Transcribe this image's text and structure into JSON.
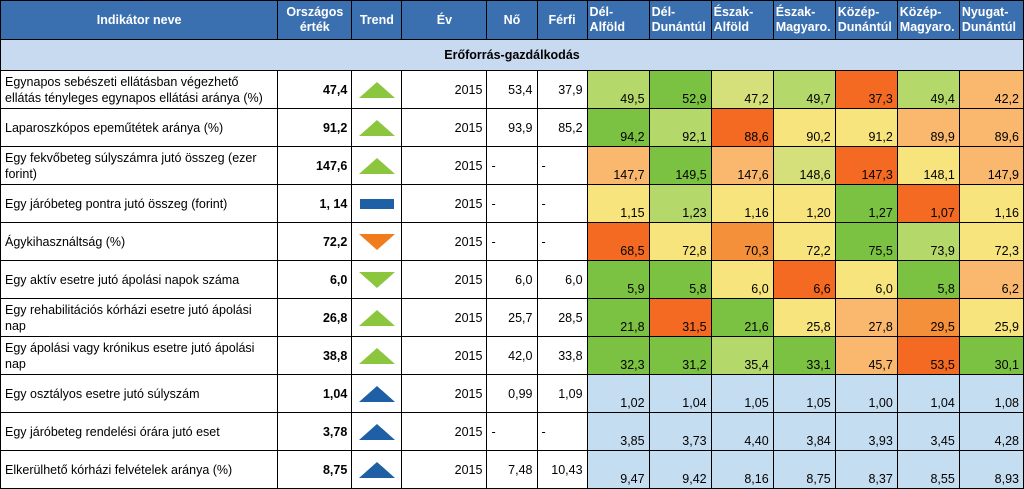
{
  "headers": [
    "Indikátor neve",
    "Országos érték",
    "Trend",
    "Év",
    "Nő",
    "Férfi",
    "Dél-Alföld",
    "Dél-Dunántúl",
    "Észak-Alföld",
    "Észak-Magyaro.",
    "Közép-Dunántúl",
    "Közép-Magyaro.",
    "Nyugat-Dunántúl"
  ],
  "header_lines": [
    [
      "Indikátor neve"
    ],
    [
      "Országos",
      "érték"
    ],
    [
      "Trend"
    ],
    [
      "Év"
    ],
    [
      "Nő"
    ],
    [
      "Férfi"
    ],
    [
      "Dél-",
      "Alföld"
    ],
    [
      "Dél-",
      "Dunántúl"
    ],
    [
      "Észak-",
      "Alföld"
    ],
    [
      "Észak-",
      "Magyaro."
    ],
    [
      "Közép-",
      "Dunántúl"
    ],
    [
      "Közép-",
      "Magyaro."
    ],
    [
      "Nyugat-",
      "Dunántúl"
    ]
  ],
  "section_title": "Erőforrás-gazdálkodás",
  "colors": {
    "header_bg": "#3a6fb0",
    "section_bg": "#c8daf0",
    "green": "#7cc242",
    "lightgreen": "#b5d86a",
    "yellow": "#f8e47c",
    "lightorange": "#f9b86e",
    "orange": "#f5903a",
    "darkorange": "#f46a22",
    "blue": "#c5ddf0"
  },
  "rows": [
    {
      "name": "Egynapos sebészeti ellátásban végezhető ellátás tényleges egynapos ellátási aránya (%)",
      "national": "47,4",
      "trend": "up-green",
      "year": "2015",
      "female": "53,4",
      "male": "37,9",
      "regions": [
        "49,5",
        "52,9",
        "47,2",
        "49,7",
        "37,3",
        "49,4",
        "42,2"
      ],
      "colors": [
        "#b5d86a",
        "#7cc242",
        "#d6e07a",
        "#b5d86a",
        "#f46a22",
        "#b5d86a",
        "#f9b86e"
      ]
    },
    {
      "name": "Laparoszkópos  epeműtétek aránya (%)",
      "national": "91,2",
      "trend": "up-green",
      "year": "2015",
      "female": "93,9",
      "male": "85,2",
      "regions": [
        "94,2",
        "92,1",
        "88,6",
        "90,2",
        "91,2",
        "89,9",
        "89,6"
      ],
      "colors": [
        "#7cc242",
        "#b5d86a",
        "#f46a22",
        "#f8e47c",
        "#f8e47c",
        "#f9b86e",
        "#f9b86e"
      ]
    },
    {
      "name": "Egy fekvőbeteg súlyszámra jutó összeg (ezer forint)",
      "national": "147,6",
      "trend": "up-green",
      "year": "2015",
      "female": "-",
      "male": "-",
      "regions": [
        "147,7",
        "149,5",
        "147,6",
        "148,6",
        "147,3",
        "148,1",
        "147,9"
      ],
      "colors": [
        "#f9b86e",
        "#7cc242",
        "#f9b86e",
        "#d6e07a",
        "#f46a22",
        "#f8e47c",
        "#f9b86e"
      ]
    },
    {
      "name": "Egy járóbeteg pontra jutó összeg (forint)",
      "national": "1, 14",
      "trend": "bar-blue",
      "year": "2015",
      "female": "-",
      "male": "-",
      "regions": [
        "1,15",
        "1,23",
        "1,16",
        "1,20",
        "1,27",
        "1,07",
        "1,16"
      ],
      "colors": [
        "#f8e47c",
        "#b5d86a",
        "#f8e47c",
        "#f8e47c",
        "#7cc242",
        "#f46a22",
        "#f8e47c"
      ]
    },
    {
      "name": "Ágykihasználtság (%)",
      "national": "72,2",
      "trend": "down-orange",
      "year": "2015",
      "female": "-",
      "male": "-",
      "regions": [
        "68,5",
        "72,8",
        "70,3",
        "72,2",
        "75,5",
        "73,9",
        "72,3"
      ],
      "colors": [
        "#f46a22",
        "#f8e47c",
        "#f5903a",
        "#f8e47c",
        "#7cc242",
        "#b5d86a",
        "#f8e47c"
      ]
    },
    {
      "name": "Egy aktív esetre jutó ápolási napok száma",
      "national": "6,0",
      "trend": "down-green",
      "year": "2015",
      "female": "6,0",
      "male": "6,0",
      "regions": [
        "5,9",
        "5,8",
        "6,0",
        "6,6",
        "6,0",
        "5,8",
        "6,2"
      ],
      "colors": [
        "#7cc242",
        "#7cc242",
        "#f8e47c",
        "#f46a22",
        "#f8e47c",
        "#7cc242",
        "#f9b86e"
      ]
    },
    {
      "name": "Egy rehabilitációs kórházi esetre jutó ápolási nap",
      "national": "26,8",
      "trend": "up-green",
      "year": "2015",
      "female": "25,7",
      "male": "28,5",
      "regions": [
        "21,8",
        "31,5",
        "21,6",
        "25,8",
        "27,8",
        "29,5",
        "25,9"
      ],
      "colors": [
        "#7cc242",
        "#f46a22",
        "#7cc242",
        "#f8e47c",
        "#f9b86e",
        "#f5903a",
        "#f8e47c"
      ]
    },
    {
      "name": "Egy ápolási vagy krónikus esetre jutó ápolási nap",
      "national": "38,8",
      "trend": "up-green",
      "year": "2015",
      "female": "42,0",
      "male": "33,8",
      "regions": [
        "32,3",
        "31,2",
        "35,4",
        "33,1",
        "45,7",
        "53,5",
        "30,1"
      ],
      "colors": [
        "#7cc242",
        "#7cc242",
        "#b5d86a",
        "#7cc242",
        "#f9b86e",
        "#f46a22",
        "#7cc242"
      ]
    },
    {
      "name": "Egy osztályos esetre jutó súlyszám",
      "national": "1,04",
      "trend": "up-blue",
      "year": "2015",
      "female": "0,99",
      "male": "1,09",
      "regions": [
        "1,02",
        "1,04",
        "1,05",
        "1,05",
        "1,00",
        "1,04",
        "1,08"
      ],
      "colors": [
        "#c5ddf0",
        "#c5ddf0",
        "#c5ddf0",
        "#c5ddf0",
        "#c5ddf0",
        "#c5ddf0",
        "#c5ddf0"
      ]
    },
    {
      "name": "Egy járóbeteg rendelési órára jutó eset",
      "national": "3,78",
      "trend": "up-blue",
      "year": "2015",
      "female": "-",
      "male": "-",
      "regions": [
        "3,85",
        "3,73",
        "4,40",
        "3,84",
        "3,93",
        "3,45",
        "4,28"
      ],
      "colors": [
        "#c5ddf0",
        "#c5ddf0",
        "#c5ddf0",
        "#c5ddf0",
        "#c5ddf0",
        "#c5ddf0",
        "#c5ddf0"
      ]
    },
    {
      "name": "Elkerülhető kórházi felvételek aránya (%)",
      "national": "8,75",
      "trend": "up-blue",
      "year": "2015",
      "female": "7,48",
      "male": "10,43",
      "regions": [
        "9,47",
        "9,42",
        "8,16",
        "8,75",
        "8,37",
        "8,55",
        "8,93"
      ],
      "colors": [
        "#c5ddf0",
        "#c5ddf0",
        "#c5ddf0",
        "#c5ddf0",
        "#c5ddf0",
        "#c5ddf0",
        "#c5ddf0"
      ]
    }
  ]
}
